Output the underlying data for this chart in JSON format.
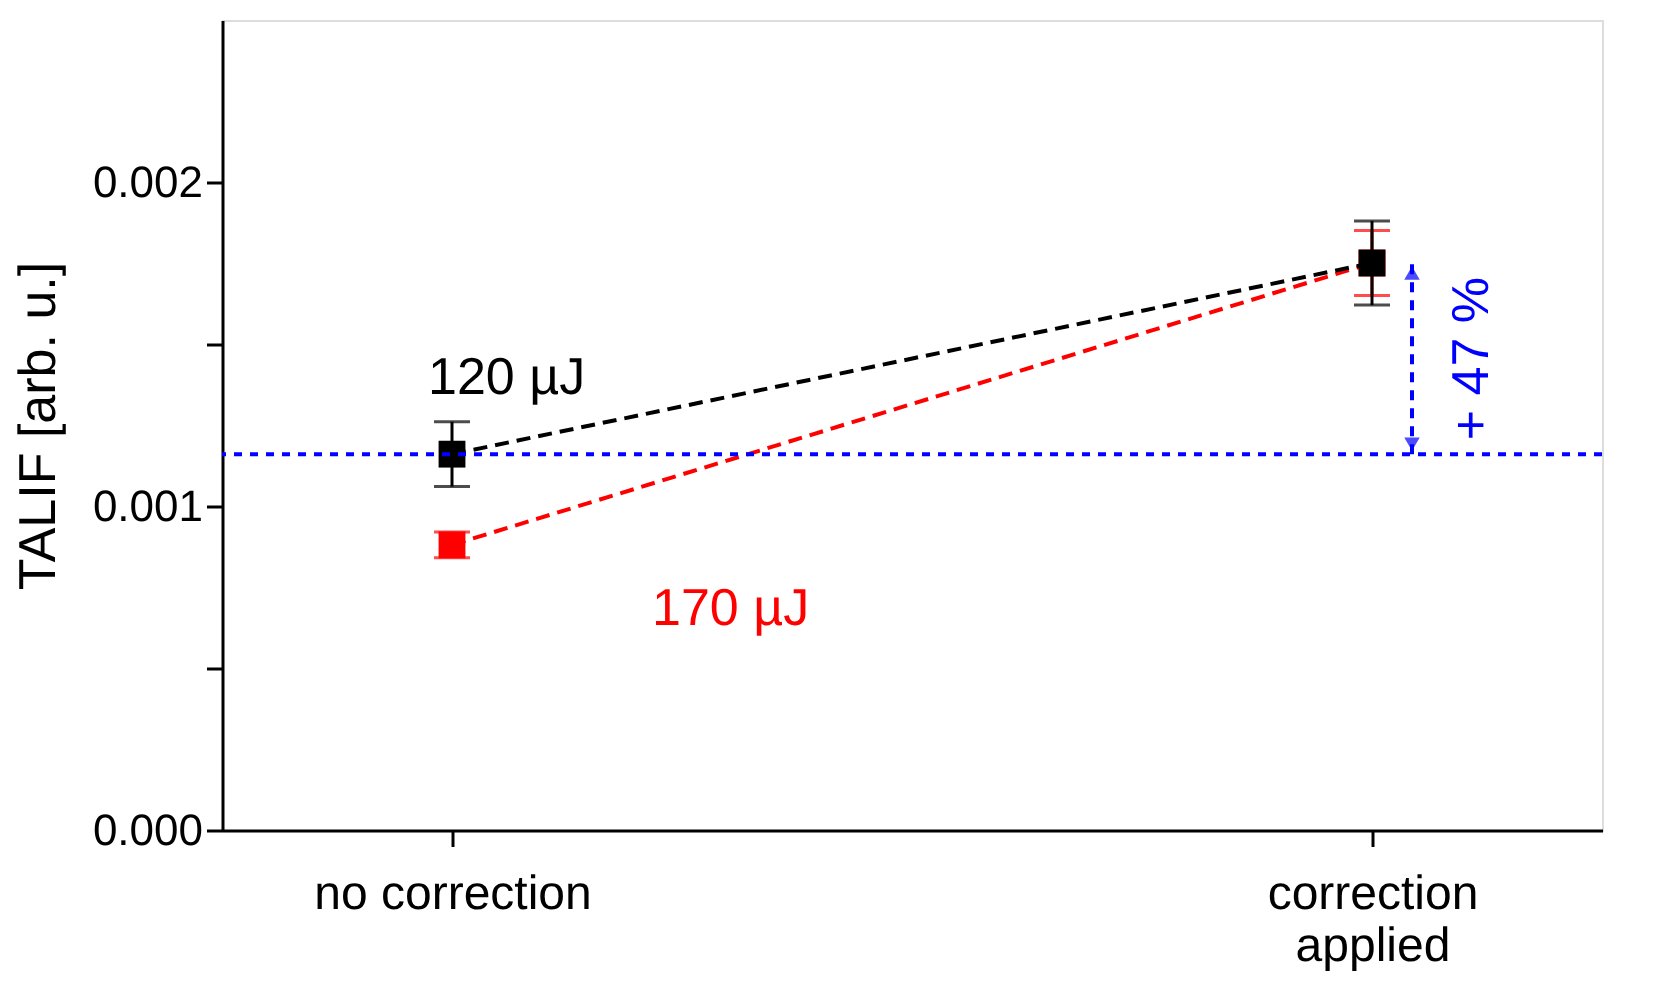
{
  "chart_data": {
    "type": "line",
    "ylabel": "TALIF [arb. u.]",
    "categories": [
      "no correction",
      "correction\napplied"
    ],
    "series": [
      {
        "name": "120 µJ",
        "color": "#000000",
        "values": [
          0.00116,
          0.00175
        ],
        "errors": [
          0.0001,
          0.00013
        ]
      },
      {
        "name": "170 µJ",
        "color": "#ff0000",
        "values": [
          0.00088,
          0.00175
        ],
        "errors": [
          4e-05,
          0.0001
        ]
      }
    ],
    "ylim": [
      0,
      0.0025
    ],
    "yticks": [
      {
        "value": 0,
        "label": "0.000"
      },
      {
        "value": 0.0005,
        "label": null
      },
      {
        "value": 0.001,
        "label": "0.001"
      },
      {
        "value": 0.0015,
        "label": null
      },
      {
        "value": 0.002,
        "label": "0.002"
      }
    ],
    "marker": "square",
    "line_style": "dashed",
    "grid": false,
    "ref_lines": [
      {
        "axis": "y",
        "value": 0.00116,
        "color": "#0000ff",
        "line_style": "dotted"
      }
    ],
    "annotations": [
      "+ 47 %"
    ]
  }
}
